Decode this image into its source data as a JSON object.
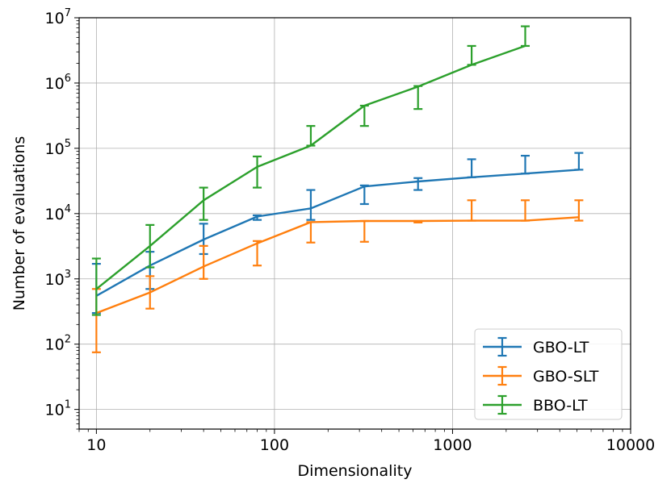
{
  "chart_data": {
    "type": "line",
    "title": "",
    "xlabel": "Dimensionality",
    "ylabel": "Number of evaluations",
    "xscale": "log",
    "yscale": "log",
    "xlim": [
      8,
      10000
    ],
    "ylim": [
      5,
      10000000
    ],
    "grid": true,
    "legend_position": "lower-right",
    "x_ticks": [
      {
        "value": 10,
        "label": "10"
      },
      {
        "value": 100,
        "label": "100"
      },
      {
        "value": 1000,
        "label": "1000"
      },
      {
        "value": 10000,
        "label": "10000"
      }
    ],
    "y_ticks": [
      {
        "value": 10,
        "base": "10",
        "exp": "1"
      },
      {
        "value": 100,
        "base": "10",
        "exp": "2"
      },
      {
        "value": 1000,
        "base": "10",
        "exp": "3"
      },
      {
        "value": 10000,
        "base": "10",
        "exp": "4"
      },
      {
        "value": 100000,
        "base": "10",
        "exp": "5"
      },
      {
        "value": 1000000,
        "base": "10",
        "exp": "6"
      },
      {
        "value": 10000000,
        "base": "10",
        "exp": "7"
      }
    ],
    "series": [
      {
        "name": "GBO-LT",
        "color": "#1f77b4",
        "x": [
          10,
          20,
          40,
          80,
          160,
          320,
          640,
          1280,
          2560,
          5120
        ],
        "y": [
          550,
          1600,
          4000,
          9000,
          12000,
          26000,
          31000,
          36000,
          41000,
          47000
        ],
        "y_low": [
          300,
          700,
          2400,
          8000,
          8000,
          14000,
          23000,
          36000,
          41000,
          47000
        ],
        "y_high": [
          1700,
          2600,
          7000,
          9400,
          23000,
          27000,
          35000,
          68000,
          77000,
          85000
        ]
      },
      {
        "name": "GBO-SLT",
        "color": "#ff7f0e",
        "x": [
          10,
          20,
          40,
          80,
          160,
          320,
          640,
          1280,
          2560,
          5120
        ],
        "y": [
          300,
          620,
          1550,
          3500,
          7400,
          7700,
          7700,
          7800,
          7800,
          8800
        ],
        "y_low": [
          75,
          350,
          1000,
          1600,
          3600,
          3700,
          7300,
          7800,
          7800,
          7800
        ],
        "y_high": [
          700,
          1100,
          3200,
          3800,
          7400,
          7700,
          7700,
          16000,
          16000,
          16000
        ]
      },
      {
        "name": "BBO-LT",
        "color": "#2ca02c",
        "x": [
          10,
          20,
          40,
          80,
          160,
          320,
          640,
          1280,
          2560
        ],
        "y": [
          700,
          3200,
          16000,
          52000,
          110000,
          450000,
          880000,
          1900000,
          3700000
        ],
        "y_low": [
          280,
          1500,
          8000,
          25000,
          110000,
          220000,
          400000,
          1900000,
          3700000
        ],
        "y_high": [
          2050,
          6700,
          25000,
          75000,
          220000,
          450000,
          900000,
          3700000,
          7400000
        ]
      }
    ]
  }
}
